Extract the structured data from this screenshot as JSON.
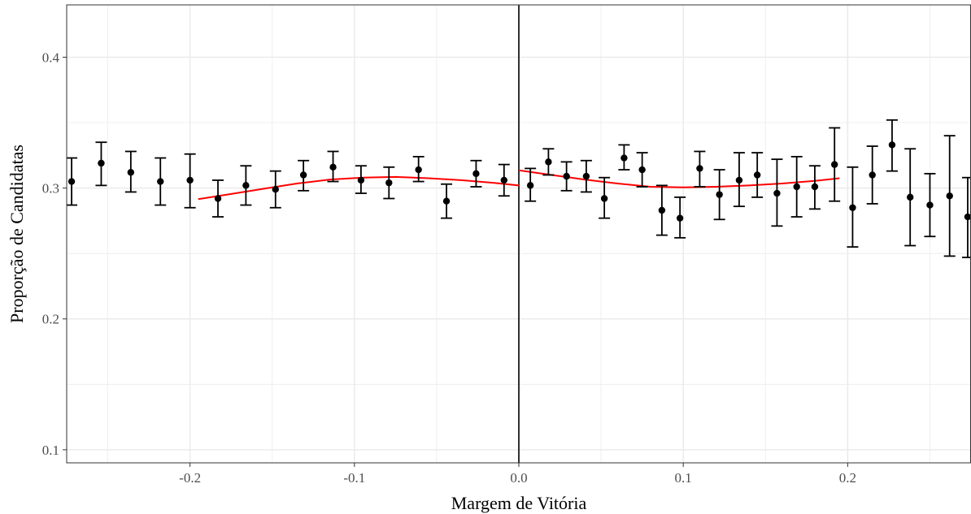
{
  "chart_data": {
    "type": "scatter",
    "xlabel": "Margem de Vitória",
    "ylabel": "Proporção de Candidatas",
    "xlim": [
      -0.275,
      0.275
    ],
    "ylim": [
      0.09,
      0.44
    ],
    "x_ticks": [
      -0.2,
      -0.1,
      0.0,
      0.1,
      0.2
    ],
    "x_tick_labels": [
      "-0.2",
      "-0.1",
      "0.0",
      "0.1",
      "0.2"
    ],
    "y_ticks": [
      0.1,
      0.2,
      0.3,
      0.4
    ],
    "y_tick_labels": [
      "0.1",
      "0.2",
      "0.3",
      "0.4"
    ],
    "grid": true,
    "cutoff_line_x": 0.0,
    "colors": {
      "points": "#000000",
      "fit_line": "#ff0000",
      "cutoff": "#000000",
      "grid": "#ebebeb"
    },
    "points": [
      {
        "x": -0.272,
        "y": 0.305,
        "low": 0.287,
        "high": 0.323
      },
      {
        "x": -0.254,
        "y": 0.319,
        "low": 0.302,
        "high": 0.335
      },
      {
        "x": -0.236,
        "y": 0.312,
        "low": 0.297,
        "high": 0.328
      },
      {
        "x": -0.218,
        "y": 0.305,
        "low": 0.287,
        "high": 0.323
      },
      {
        "x": -0.2,
        "y": 0.306,
        "low": 0.285,
        "high": 0.326
      },
      {
        "x": -0.183,
        "y": 0.292,
        "low": 0.278,
        "high": 0.306
      },
      {
        "x": -0.166,
        "y": 0.302,
        "low": 0.287,
        "high": 0.317
      },
      {
        "x": -0.148,
        "y": 0.299,
        "low": 0.285,
        "high": 0.313
      },
      {
        "x": -0.131,
        "y": 0.31,
        "low": 0.298,
        "high": 0.321
      },
      {
        "x": -0.113,
        "y": 0.316,
        "low": 0.305,
        "high": 0.328
      },
      {
        "x": -0.096,
        "y": 0.306,
        "low": 0.296,
        "high": 0.317
      },
      {
        "x": -0.079,
        "y": 0.304,
        "low": 0.292,
        "high": 0.316
      },
      {
        "x": -0.061,
        "y": 0.314,
        "low": 0.305,
        "high": 0.324
      },
      {
        "x": -0.044,
        "y": 0.29,
        "low": 0.277,
        "high": 0.303
      },
      {
        "x": -0.026,
        "y": 0.311,
        "low": 0.301,
        "high": 0.321
      },
      {
        "x": -0.009,
        "y": 0.306,
        "low": 0.294,
        "high": 0.318
      },
      {
        "x": 0.007,
        "y": 0.302,
        "low": 0.29,
        "high": 0.315
      },
      {
        "x": 0.018,
        "y": 0.32,
        "low": 0.31,
        "high": 0.33
      },
      {
        "x": 0.029,
        "y": 0.309,
        "low": 0.298,
        "high": 0.32
      },
      {
        "x": 0.041,
        "y": 0.309,
        "low": 0.297,
        "high": 0.321
      },
      {
        "x": 0.052,
        "y": 0.292,
        "low": 0.277,
        "high": 0.308
      },
      {
        "x": 0.064,
        "y": 0.323,
        "low": 0.314,
        "high": 0.333
      },
      {
        "x": 0.075,
        "y": 0.314,
        "low": 0.301,
        "high": 0.327
      },
      {
        "x": 0.087,
        "y": 0.283,
        "low": 0.264,
        "high": 0.302
      },
      {
        "x": 0.098,
        "y": 0.277,
        "low": 0.262,
        "high": 0.293
      },
      {
        "x": 0.11,
        "y": 0.315,
        "low": 0.301,
        "high": 0.328
      },
      {
        "x": 0.122,
        "y": 0.295,
        "low": 0.276,
        "high": 0.314
      },
      {
        "x": 0.134,
        "y": 0.306,
        "low": 0.286,
        "high": 0.327
      },
      {
        "x": 0.145,
        "y": 0.31,
        "low": 0.293,
        "high": 0.327
      },
      {
        "x": 0.157,
        "y": 0.296,
        "low": 0.271,
        "high": 0.322
      },
      {
        "x": 0.169,
        "y": 0.301,
        "low": 0.278,
        "high": 0.324
      },
      {
        "x": 0.18,
        "y": 0.301,
        "low": 0.284,
        "high": 0.317
      },
      {
        "x": 0.192,
        "y": 0.318,
        "low": 0.29,
        "high": 0.346
      },
      {
        "x": 0.203,
        "y": 0.285,
        "low": 0.255,
        "high": 0.316
      },
      {
        "x": 0.215,
        "y": 0.31,
        "low": 0.288,
        "high": 0.332
      },
      {
        "x": 0.227,
        "y": 0.333,
        "low": 0.313,
        "high": 0.352
      },
      {
        "x": 0.238,
        "y": 0.293,
        "low": 0.256,
        "high": 0.33
      },
      {
        "x": 0.25,
        "y": 0.287,
        "low": 0.263,
        "high": 0.311
      },
      {
        "x": 0.262,
        "y": 0.294,
        "low": 0.248,
        "high": 0.34
      },
      {
        "x": 0.273,
        "y": 0.278,
        "low": 0.247,
        "high": 0.308
      }
    ],
    "fit_left": {
      "x": [
        -0.195,
        -0.175,
        -0.155,
        -0.135,
        -0.115,
        -0.095,
        -0.075,
        -0.055,
        -0.035,
        -0.015,
        0.0
      ],
      "y": [
        0.2915,
        0.2955,
        0.2995,
        0.3035,
        0.3065,
        0.308,
        0.3085,
        0.3075,
        0.306,
        0.304,
        0.302
      ]
    },
    "fit_right": {
      "x": [
        0.0,
        0.02,
        0.04,
        0.06,
        0.08,
        0.1,
        0.12,
        0.14,
        0.16,
        0.18,
        0.195
      ],
      "y": [
        0.3135,
        0.31,
        0.3065,
        0.3035,
        0.301,
        0.3005,
        0.301,
        0.302,
        0.3035,
        0.3055,
        0.3075
      ]
    }
  }
}
